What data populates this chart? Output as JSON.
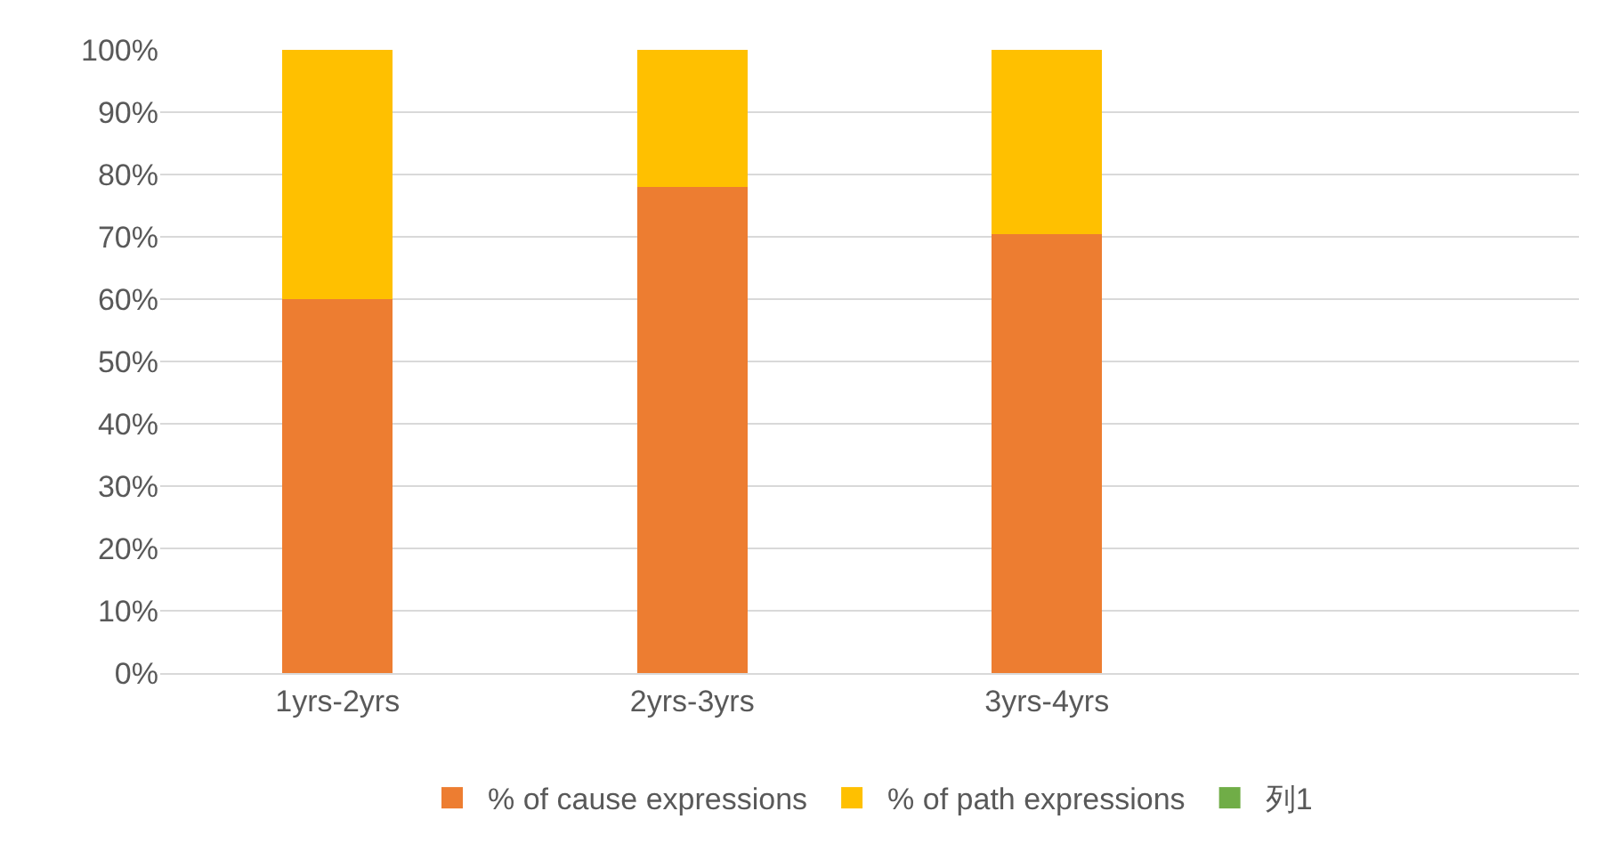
{
  "chart_data": {
    "type": "bar",
    "stacked": true,
    "categories": [
      "1yrs-2yrs",
      "2yrs-3yrs",
      "3yrs-4yrs",
      null
    ],
    "series": [
      {
        "name": "% of cause expressions",
        "color": "#ed7d31",
        "values": [
          60,
          78,
          70.5,
          null
        ]
      },
      {
        "name": "% of path expressions",
        "color": "#ffc000",
        "values": [
          40,
          22,
          29.5,
          null
        ]
      },
      {
        "name": "列1",
        "color": "#70ad47",
        "values": [
          null,
          null,
          null,
          null
        ]
      }
    ],
    "ylim": [
      0,
      100
    ],
    "yticks": [
      {
        "value": 0,
        "label": "0%"
      },
      {
        "value": 10,
        "label": "10%"
      },
      {
        "value": 20,
        "label": "20%"
      },
      {
        "value": 30,
        "label": "30%"
      },
      {
        "value": 40,
        "label": "40%"
      },
      {
        "value": 50,
        "label": "50%"
      },
      {
        "value": 60,
        "label": "60%"
      },
      {
        "value": 70,
        "label": "70%"
      },
      {
        "value": 80,
        "label": "80%"
      },
      {
        "value": 90,
        "label": "90%"
      },
      {
        "value": 100,
        "label": "100%"
      }
    ],
    "grid": "y",
    "legend": "bottom"
  }
}
